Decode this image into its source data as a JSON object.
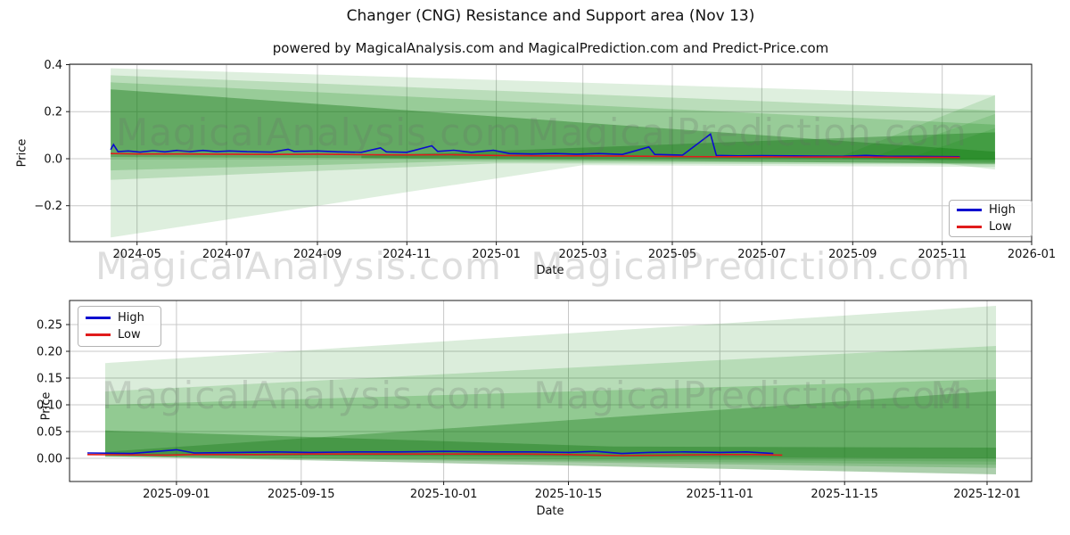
{
  "title": "Changer (CNG) Resistance and Support area (Nov 13)",
  "subtitle": "powered by MagicalAnalysis.com and MagicalPrediction.com and Predict-Price.com",
  "watermarks": {
    "analysis": "MagicalAnalysis.com",
    "prediction": "MagicalPrediction.com",
    "partial": "M"
  },
  "chart_data": [
    {
      "type": "line",
      "name": "resistance-support-full-history",
      "xlabel": "Date",
      "ylabel": "Price",
      "grid": true,
      "legend_position": "lower right",
      "xdomain": [
        "2024-03-16",
        "2026-01-01"
      ],
      "ydomain": [
        -0.353,
        0.402
      ],
      "yticks": [
        {
          "v": -0.2,
          "label": "−0.2"
        },
        {
          "v": 0.0,
          "label": "0.0"
        },
        {
          "v": 0.2,
          "label": "0.2"
        },
        {
          "v": 0.4,
          "label": "0.4"
        }
      ],
      "xticks": [
        {
          "d": "2024-05-01",
          "label": "2024-05"
        },
        {
          "d": "2024-07-01",
          "label": "2024-07"
        },
        {
          "d": "2024-09-01",
          "label": "2024-09"
        },
        {
          "d": "2024-11-01",
          "label": "2024-11"
        },
        {
          "d": "2025-01-01",
          "label": "2025-01"
        },
        {
          "d": "2025-03-01",
          "label": "2025-03"
        },
        {
          "d": "2025-05-01",
          "label": "2025-05"
        },
        {
          "d": "2025-07-01",
          "label": "2025-07"
        },
        {
          "d": "2025-09-01",
          "label": "2025-09"
        },
        {
          "d": "2025-11-01",
          "label": "2025-11"
        },
        {
          "d": "2026-01-01",
          "label": "2026-01"
        }
      ],
      "bands": [
        {
          "name": "fan-outer-light",
          "color": "0,128,0",
          "alpha": 0.13,
          "top": [
            [
              "2024-04-13",
              0.385
            ],
            [
              "2025-12-07",
              0.27
            ]
          ],
          "bottom": [
            [
              "2024-04-13",
              -0.335
            ],
            [
              "2025-03-01",
              -0.028
            ],
            [
              "2025-12-07",
              -0.035
            ]
          ]
        },
        {
          "name": "fan-mid-light",
          "color": "0,128,0",
          "alpha": 0.16,
          "top": [
            [
              "2024-04-13",
              0.355
            ],
            [
              "2025-12-07",
              0.205
            ]
          ],
          "bottom": [
            [
              "2024-04-13",
              -0.09
            ],
            [
              "2025-01-01",
              -0.02
            ],
            [
              "2025-12-07",
              -0.025
            ]
          ]
        },
        {
          "name": "fan-inner-light",
          "color": "0,128,0",
          "alpha": 0.18,
          "top": [
            [
              "2024-04-13",
              0.325
            ],
            [
              "2025-12-07",
              0.145
            ]
          ],
          "bottom": [
            [
              "2024-04-13",
              -0.05
            ],
            [
              "2024-12-01",
              -0.012
            ],
            [
              "2025-12-07",
              -0.018
            ]
          ]
        },
        {
          "name": "fan-dark-converging",
          "color": "26,122,26",
          "alpha": 0.42,
          "top": [
            [
              "2024-04-13",
              0.295
            ],
            [
              "2025-12-07",
              0.03
            ]
          ],
          "bottom": [
            [
              "2024-04-13",
              0.006
            ],
            [
              "2025-12-07",
              -0.004
            ]
          ]
        },
        {
          "name": "fan-dark-rising",
          "color": "26,122,26",
          "alpha": 0.38,
          "top": [
            [
              "2024-10-01",
              0.012
            ],
            [
              "2025-12-07",
              0.112
            ]
          ],
          "bottom": [
            [
              "2024-10-01",
              0.002
            ],
            [
              "2025-12-07",
              -0.022
            ]
          ]
        },
        {
          "name": "fan-forecast-wide",
          "color": "0,128,0",
          "alpha": 0.13,
          "top": [
            [
              "2025-08-25",
              0.012
            ],
            [
              "2025-12-07",
              0.27
            ]
          ],
          "bottom": [
            [
              "2025-08-25",
              0.0
            ],
            [
              "2025-12-07",
              -0.008
            ]
          ]
        },
        {
          "name": "fan-forecast-mid",
          "color": "0,128,0",
          "alpha": 0.13,
          "top": [
            [
              "2025-09-15",
              0.008
            ],
            [
              "2025-12-07",
              0.19
            ]
          ],
          "bottom": [
            [
              "2025-09-15",
              -0.002
            ],
            [
              "2025-12-07",
              -0.015
            ]
          ]
        },
        {
          "name": "fan-forecast-low",
          "color": "0,128,0",
          "alpha": 0.13,
          "top": [
            [
              "2025-10-10",
              0.004
            ],
            [
              "2025-12-07",
              0.13
            ]
          ],
          "bottom": [
            [
              "2025-10-10",
              -0.004
            ],
            [
              "2025-12-07",
              -0.046
            ]
          ]
        }
      ],
      "series": [
        {
          "name": "High",
          "color": "#0b0bcf",
          "data": [
            [
              "2024-04-13",
              0.038
            ],
            [
              "2024-04-15",
              0.06
            ],
            [
              "2024-04-18",
              0.03
            ],
            [
              "2024-04-25",
              0.033
            ],
            [
              "2024-05-03",
              0.028
            ],
            [
              "2024-05-12",
              0.034
            ],
            [
              "2024-05-20",
              0.029
            ],
            [
              "2024-05-28",
              0.035
            ],
            [
              "2024-06-06",
              0.03
            ],
            [
              "2024-06-15",
              0.035
            ],
            [
              "2024-06-24",
              0.03
            ],
            [
              "2024-07-03",
              0.033
            ],
            [
              "2024-07-15",
              0.03
            ],
            [
              "2024-08-01",
              0.028
            ],
            [
              "2024-08-12",
              0.04
            ],
            [
              "2024-08-16",
              0.031
            ],
            [
              "2024-09-01",
              0.033
            ],
            [
              "2024-09-15",
              0.029
            ],
            [
              "2024-10-01",
              0.027
            ],
            [
              "2024-10-14",
              0.046
            ],
            [
              "2024-10-18",
              0.029
            ],
            [
              "2024-11-01",
              0.027
            ],
            [
              "2024-11-18",
              0.055
            ],
            [
              "2024-11-22",
              0.031
            ],
            [
              "2024-12-03",
              0.036
            ],
            [
              "2024-12-15",
              0.027
            ],
            [
              "2024-12-30",
              0.036
            ],
            [
              "2025-01-10",
              0.022
            ],
            [
              "2025-01-25",
              0.02
            ],
            [
              "2025-02-10",
              0.022
            ],
            [
              "2025-02-25",
              0.019
            ],
            [
              "2025-03-12",
              0.022
            ],
            [
              "2025-03-28",
              0.018
            ],
            [
              "2025-04-15",
              0.05
            ],
            [
              "2025-04-19",
              0.018
            ],
            [
              "2025-05-08",
              0.015
            ],
            [
              "2025-05-27",
              0.105
            ],
            [
              "2025-05-31",
              0.014
            ],
            [
              "2025-06-15",
              0.012
            ],
            [
              "2025-07-01",
              0.013
            ],
            [
              "2025-07-20",
              0.012
            ],
            [
              "2025-08-05",
              0.011
            ],
            [
              "2025-08-25",
              0.01
            ],
            [
              "2025-09-10",
              0.014
            ],
            [
              "2025-09-25",
              0.01
            ],
            [
              "2025-10-10",
              0.01
            ],
            [
              "2025-10-25",
              0.009
            ],
            [
              "2025-11-13",
              0.008
            ]
          ]
        },
        {
          "name": "Low",
          "color": "#e01b1b",
          "data": [
            [
              "2024-04-13",
              0.022
            ],
            [
              "2024-05-01",
              0.02
            ],
            [
              "2024-06-01",
              0.02
            ],
            [
              "2024-07-01",
              0.019
            ],
            [
              "2024-08-01",
              0.018
            ],
            [
              "2024-09-01",
              0.019
            ],
            [
              "2024-10-01",
              0.017
            ],
            [
              "2024-11-01",
              0.016
            ],
            [
              "2024-12-01",
              0.017
            ],
            [
              "2025-01-01",
              0.014
            ],
            [
              "2025-02-01",
              0.012
            ],
            [
              "2025-03-01",
              0.012
            ],
            [
              "2025-04-01",
              0.011
            ],
            [
              "2025-05-01",
              0.009
            ],
            [
              "2025-06-01",
              0.008
            ],
            [
              "2025-07-01",
              0.008
            ],
            [
              "2025-08-01",
              0.007
            ],
            [
              "2025-09-01",
              0.007
            ],
            [
              "2025-10-01",
              0.006
            ],
            [
              "2025-11-01",
              0.006
            ],
            [
              "2025-11-13",
              0.005
            ]
          ]
        }
      ]
    },
    {
      "type": "line",
      "name": "resistance-support-recent-zoom",
      "xlabel": "Date",
      "ylabel": "Price",
      "grid": true,
      "legend_position": "upper left",
      "xdomain": [
        "2025-08-20",
        "2025-12-06"
      ],
      "ydomain": [
        -0.0433,
        0.295
      ],
      "yticks": [
        {
          "v": 0.0,
          "label": "0.00"
        },
        {
          "v": 0.05,
          "label": "0.05"
        },
        {
          "v": 0.1,
          "label": "0.10"
        },
        {
          "v": 0.15,
          "label": "0.15"
        },
        {
          "v": 0.2,
          "label": "0.20"
        },
        {
          "v": 0.25,
          "label": "0.25"
        }
      ],
      "xticks": [
        {
          "d": "2025-09-01",
          "label": "2025-09-01"
        },
        {
          "d": "2025-09-15",
          "label": "2025-09-15"
        },
        {
          "d": "2025-10-01",
          "label": "2025-10-01"
        },
        {
          "d": "2025-10-15",
          "label": "2025-10-15"
        },
        {
          "d": "2025-11-01",
          "label": "2025-11-01"
        },
        {
          "d": "2025-11-15",
          "label": "2025-11-15"
        },
        {
          "d": "2025-12-01",
          "label": "2025-12-01"
        }
      ],
      "bands": [
        {
          "name": "fan-outer-light",
          "color": "0,128,0",
          "alpha": 0.14,
          "top": [
            [
              "2025-08-24",
              0.178
            ],
            [
              "2025-12-02",
              0.285
            ]
          ],
          "bottom": [
            [
              "2025-08-24",
              0.002
            ],
            [
              "2025-12-02",
              -0.006
            ]
          ]
        },
        {
          "name": "fan-mid-light",
          "color": "0,128,0",
          "alpha": 0.16,
          "top": [
            [
              "2025-08-24",
              0.125
            ],
            [
              "2025-12-02",
              0.21
            ]
          ],
          "bottom": [
            [
              "2025-08-24",
              0.003
            ],
            [
              "2025-12-02",
              -0.012
            ]
          ]
        },
        {
          "name": "fan-inner-medium",
          "color": "0,128,0",
          "alpha": 0.2,
          "top": [
            [
              "2025-08-24",
              0.1
            ],
            [
              "2025-12-02",
              0.148
            ]
          ],
          "bottom": [
            [
              "2025-08-24",
              0.004
            ],
            [
              "2025-12-02",
              -0.018
            ]
          ]
        },
        {
          "name": "fan-dark-converging",
          "color": "26,122,26",
          "alpha": 0.4,
          "top": [
            [
              "2025-08-24",
              0.052
            ],
            [
              "2025-10-20",
              0.022
            ],
            [
              "2025-12-02",
              0.02
            ]
          ],
          "bottom": [
            [
              "2025-08-24",
              0.006
            ],
            [
              "2025-12-02",
              0.0
            ]
          ]
        },
        {
          "name": "fan-dark-rising",
          "color": "26,122,26",
          "alpha": 0.36,
          "top": [
            [
              "2025-08-24",
              0.012
            ],
            [
              "2025-12-02",
              0.126
            ]
          ],
          "bottom": [
            [
              "2025-08-24",
              0.004
            ],
            [
              "2025-12-02",
              -0.03
            ]
          ]
        }
      ],
      "series": [
        {
          "name": "High",
          "color": "#0b0bcf",
          "data": [
            [
              "2025-08-22",
              0.01
            ],
            [
              "2025-08-27",
              0.009
            ],
            [
              "2025-09-01",
              0.016
            ],
            [
              "2025-09-03",
              0.01
            ],
            [
              "2025-09-08",
              0.011
            ],
            [
              "2025-09-12",
              0.012
            ],
            [
              "2025-09-16",
              0.011
            ],
            [
              "2025-09-21",
              0.012
            ],
            [
              "2025-09-26",
              0.012
            ],
            [
              "2025-10-01",
              0.013
            ],
            [
              "2025-10-06",
              0.012
            ],
            [
              "2025-10-11",
              0.012
            ],
            [
              "2025-10-15",
              0.011
            ],
            [
              "2025-10-18",
              0.013
            ],
            [
              "2025-10-21",
              0.009
            ],
            [
              "2025-10-24",
              0.011
            ],
            [
              "2025-10-28",
              0.012
            ],
            [
              "2025-11-01",
              0.011
            ],
            [
              "2025-11-04",
              0.012
            ],
            [
              "2025-11-07",
              0.009
            ]
          ]
        },
        {
          "name": "Low",
          "color": "#e01b1b",
          "data": [
            [
              "2025-08-22",
              0.007
            ],
            [
              "2025-08-31",
              0.006
            ],
            [
              "2025-09-03",
              0.007
            ],
            [
              "2025-09-10",
              0.007
            ],
            [
              "2025-09-16",
              0.008
            ],
            [
              "2025-09-24",
              0.008
            ],
            [
              "2025-10-01",
              0.008
            ],
            [
              "2025-10-10",
              0.008
            ],
            [
              "2025-10-15",
              0.007
            ],
            [
              "2025-10-18",
              0.006
            ],
            [
              "2025-10-21",
              0.005
            ],
            [
              "2025-10-26",
              0.006
            ],
            [
              "2025-11-01",
              0.007
            ],
            [
              "2025-11-05",
              0.007
            ],
            [
              "2025-11-08",
              0.006
            ]
          ]
        }
      ]
    }
  ]
}
